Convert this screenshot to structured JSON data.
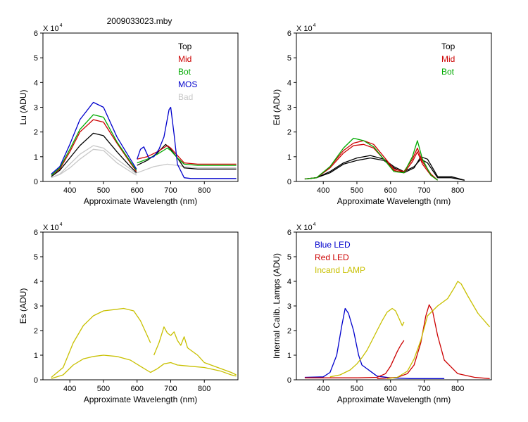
{
  "figure": {
    "title": "2009033023.mby"
  },
  "chart_data": [
    {
      "type": "line",
      "ylabel": "Lu (ADU)",
      "xlabel": "Approximate Wavelength (nm)",
      "exponent_label": "X 10",
      "exponent_power": "4",
      "xlim": [
        320,
        900
      ],
      "ylim": [
        0,
        6
      ],
      "xticks": [
        400,
        500,
        600,
        700,
        800
      ],
      "yticks": [
        0,
        1,
        2,
        3,
        4,
        5,
        6
      ],
      "legend": [
        {
          "label": "Top",
          "color": "#000000"
        },
        {
          "label": "Mid",
          "color": "#cc0000"
        },
        {
          "label": "Bot",
          "color": "#00aa00"
        },
        {
          "label": "MOS",
          "color": "#0000cc"
        },
        {
          "label": "Bad",
          "color": "#c8c8c8"
        }
      ],
      "series": [
        {
          "name": "Bad",
          "color": "#c8c8c8",
          "x": [
            345,
            370,
            400,
            430,
            470,
            500,
            540,
            580,
            598
          ],
          "y": [
            0.15,
            0.28,
            0.55,
            0.9,
            1.3,
            1.25,
            0.75,
            0.4,
            0.25
          ]
        },
        {
          "name": "Bad",
          "color": "#c8c8c8",
          "x": [
            345,
            370,
            400,
            430,
            470,
            500,
            540,
            580,
            598
          ],
          "y": [
            0.15,
            0.3,
            0.7,
            1.1,
            1.45,
            1.35,
            0.9,
            0.5,
            0.3
          ]
        },
        {
          "name": "Bad",
          "color": "#c8c8c8",
          "x": [
            600,
            620,
            650,
            690,
            700,
            720,
            740,
            780,
            840,
            895
          ],
          "y": [
            0.35,
            0.45,
            0.6,
            0.7,
            0.68,
            0.65,
            0.6,
            0.55,
            0.55,
            0.55
          ]
        },
        {
          "name": "Top",
          "color": "#000000",
          "x": [
            345,
            370,
            400,
            430,
            470,
            500,
            540,
            580,
            598
          ],
          "y": [
            0.2,
            0.45,
            0.95,
            1.45,
            1.95,
            1.85,
            1.2,
            0.6,
            0.35
          ]
        },
        {
          "name": "Top",
          "color": "#000000",
          "x": [
            600,
            630,
            660,
            685,
            700,
            720,
            740,
            780,
            840,
            895
          ],
          "y": [
            0.65,
            0.85,
            1.15,
            1.5,
            1.3,
            0.95,
            0.55,
            0.5,
            0.5,
            0.5
          ]
        },
        {
          "name": "Mid",
          "color": "#cc0000",
          "x": [
            345,
            370,
            400,
            430,
            470,
            500,
            540,
            580,
            598
          ],
          "y": [
            0.25,
            0.5,
            1.2,
            2.0,
            2.5,
            2.4,
            1.55,
            0.75,
            0.4
          ]
        },
        {
          "name": "Mid",
          "color": "#cc0000",
          "x": [
            600,
            630,
            660,
            690,
            700,
            720,
            740,
            780,
            840,
            895
          ],
          "y": [
            0.9,
            1.0,
            1.2,
            1.45,
            1.35,
            1.05,
            0.75,
            0.7,
            0.7,
            0.7
          ]
        },
        {
          "name": "Bot",
          "color": "#00aa00",
          "x": [
            345,
            370,
            400,
            430,
            470,
            500,
            540,
            580,
            598
          ],
          "y": [
            0.25,
            0.55,
            1.3,
            2.1,
            2.7,
            2.6,
            1.6,
            0.8,
            0.45
          ]
        },
        {
          "name": "Bot",
          "color": "#00aa00",
          "x": [
            600,
            630,
            660,
            690,
            700,
            720,
            740,
            780,
            840,
            895
          ],
          "y": [
            0.75,
            0.9,
            1.1,
            1.35,
            1.25,
            0.95,
            0.7,
            0.65,
            0.65,
            0.65
          ]
        },
        {
          "name": "MOS",
          "color": "#0000cc",
          "x": [
            345,
            370,
            400,
            430,
            470,
            500,
            540,
            580,
            598
          ],
          "y": [
            0.3,
            0.6,
            1.5,
            2.5,
            3.2,
            3.0,
            1.8,
            0.9,
            0.5
          ]
        },
        {
          "name": "MOS",
          "color": "#0000cc",
          "x": [
            600,
            610,
            620,
            635,
            650,
            665,
            680,
            695,
            700,
            710,
            720,
            740,
            760,
            800,
            895
          ],
          "y": [
            0.9,
            1.3,
            1.4,
            0.95,
            1.0,
            1.3,
            1.8,
            2.9,
            3.0,
            1.9,
            0.7,
            0.15,
            0.12,
            0.12,
            0.12
          ]
        }
      ]
    },
    {
      "type": "line",
      "ylabel": "Ed  (ADU)",
      "xlabel": "Approximate Wavelength (nm)",
      "exponent_label": "X 10",
      "exponent_power": "4",
      "xlim": [
        320,
        900
      ],
      "ylim": [
        0,
        6
      ],
      "xticks": [
        400,
        500,
        600,
        700,
        800
      ],
      "yticks": [
        0,
        1,
        2,
        3,
        4,
        5,
        6
      ],
      "legend": [
        {
          "label": "Top",
          "color": "#000000"
        },
        {
          "label": "Mid",
          "color": "#cc0000"
        },
        {
          "label": "Bot",
          "color": "#00aa00"
        }
      ],
      "series": [
        {
          "name": "Top",
          "color": "#000000",
          "x": [
            345,
            380,
            420,
            460,
            500,
            540,
            580,
            610,
            640,
            670,
            690,
            710,
            740,
            780,
            820
          ],
          "y": [
            0.1,
            0.15,
            0.4,
            0.75,
            0.95,
            1.05,
            0.9,
            0.6,
            0.4,
            0.6,
            0.9,
            0.75,
            0.15,
            0.15,
            0.05
          ]
        },
        {
          "name": "Top",
          "color": "#000000",
          "x": [
            345,
            380,
            420,
            460,
            500,
            540,
            580,
            610,
            640,
            670,
            690,
            710,
            740,
            780,
            820
          ],
          "y": [
            0.1,
            0.15,
            0.35,
            0.7,
            0.85,
            0.95,
            0.85,
            0.55,
            0.35,
            0.55,
            1.0,
            0.9,
            0.2,
            0.2,
            0.05
          ]
        },
        {
          "name": "Mid",
          "color": "#cc0000",
          "x": [
            345,
            380,
            420,
            460,
            490,
            520,
            550,
            580,
            610,
            640,
            665,
            680,
            695,
            720,
            740
          ],
          "y": [
            0.1,
            0.15,
            0.6,
            1.25,
            1.55,
            1.65,
            1.5,
            1.0,
            0.5,
            0.4,
            0.9,
            1.35,
            0.8,
            0.3,
            0.05
          ]
        },
        {
          "name": "Mid",
          "color": "#cc0000",
          "x": [
            345,
            380,
            420,
            460,
            490,
            520,
            550,
            580,
            610,
            640,
            665,
            680,
            695,
            720,
            740
          ],
          "y": [
            0.1,
            0.15,
            0.55,
            1.15,
            1.45,
            1.5,
            1.35,
            0.9,
            0.45,
            0.35,
            0.8,
            1.2,
            0.7,
            0.25,
            0.05
          ]
        },
        {
          "name": "Bot",
          "color": "#00aa00",
          "x": [
            345,
            380,
            420,
            460,
            490,
            520,
            550,
            580,
            610,
            640,
            665,
            680,
            695,
            720,
            740
          ],
          "y": [
            0.1,
            0.15,
            0.6,
            1.35,
            1.75,
            1.65,
            1.4,
            0.9,
            0.4,
            0.35,
            1.0,
            1.65,
            0.9,
            0.25,
            0.05
          ]
        }
      ]
    },
    {
      "type": "line",
      "ylabel": "Es  (ADU)",
      "xlabel": "Approximate Wavelength (nm)",
      "exponent_label": "X 10",
      "exponent_power": "4",
      "xlim": [
        320,
        900
      ],
      "ylim": [
        0,
        6
      ],
      "xticks": [
        400,
        500,
        600,
        700,
        800
      ],
      "yticks": [
        0,
        1,
        2,
        3,
        4,
        5,
        6
      ],
      "legend": [],
      "series": [
        {
          "name": "Es",
          "color": "#c8c000",
          "x": [
            345,
            380,
            410,
            440,
            470,
            500,
            530,
            560,
            590,
            610,
            630,
            640
          ],
          "y": [
            0.1,
            0.5,
            1.5,
            2.2,
            2.6,
            2.8,
            2.85,
            2.9,
            2.8,
            2.4,
            1.8,
            1.5
          ]
        },
        {
          "name": "Es",
          "color": "#c8c000",
          "x": [
            650,
            665,
            680,
            690,
            700,
            710,
            720,
            730,
            740,
            750,
            760,
            780,
            800,
            840,
            880,
            895
          ],
          "y": [
            1.0,
            1.5,
            2.15,
            1.9,
            1.8,
            1.95,
            1.6,
            1.4,
            1.75,
            1.3,
            1.2,
            1.0,
            0.7,
            0.5,
            0.3,
            0.2
          ]
        },
        {
          "name": "Es",
          "color": "#c8c000",
          "x": [
            345,
            380,
            410,
            440,
            470,
            500,
            540,
            580,
            610,
            640,
            660,
            680,
            700,
            720,
            760,
            800,
            850,
            880,
            895
          ],
          "y": [
            0.05,
            0.2,
            0.6,
            0.85,
            0.95,
            1.0,
            0.95,
            0.8,
            0.55,
            0.3,
            0.45,
            0.65,
            0.7,
            0.6,
            0.55,
            0.5,
            0.35,
            0.2,
            0.15
          ]
        }
      ]
    },
    {
      "type": "line",
      "ylabel": "Internal Calib. Lamps (ADU)",
      "xlabel": "Approximate Wavelength (nm)",
      "exponent_label": "X 10",
      "exponent_power": "4",
      "xlim": [
        320,
        900
      ],
      "ylim": [
        0,
        6
      ],
      "xticks": [
        400,
        500,
        600,
        700,
        800
      ],
      "yticks": [
        0,
        1,
        2,
        3,
        4,
        5,
        6
      ],
      "legend": [
        {
          "label": "Blue LED",
          "color": "#0000cc"
        },
        {
          "label": "Red LED",
          "color": "#cc0000"
        },
        {
          "label": "Incand LAMP",
          "color": "#c8c000"
        }
      ],
      "series": [
        {
          "name": "Blue LED",
          "color": "#0000cc",
          "x": [
            345,
            400,
            420,
            440,
            455,
            465,
            475,
            490,
            505,
            515,
            525,
            540,
            560,
            600,
            660,
            760
          ],
          "y": [
            0.1,
            0.12,
            0.3,
            1.0,
            2.2,
            2.9,
            2.7,
            2.0,
            1.0,
            0.6,
            0.5,
            0.35,
            0.15,
            0.08,
            0.05,
            0.05
          ]
        },
        {
          "name": "Red LED",
          "color": "#cc0000",
          "x": [
            345,
            500,
            560,
            585,
            600,
            610,
            620,
            630,
            640
          ],
          "y": [
            0.08,
            0.08,
            0.1,
            0.25,
            0.55,
            0.85,
            1.15,
            1.4,
            1.6
          ]
        },
        {
          "name": "Red LED",
          "color": "#cc0000",
          "x": [
            560,
            620,
            650,
            670,
            690,
            705,
            715,
            725,
            740,
            760,
            800,
            850,
            895
          ],
          "y": [
            0.05,
            0.1,
            0.25,
            0.6,
            1.5,
            2.6,
            3.05,
            2.8,
            1.8,
            0.8,
            0.25,
            0.1,
            0.05
          ]
        },
        {
          "name": "Incand LAMP",
          "color": "#c8c000",
          "x": [
            420,
            450,
            480,
            500,
            515,
            530,
            545,
            560,
            575,
            590,
            605,
            615,
            625,
            635,
            640
          ],
          "y": [
            0.12,
            0.2,
            0.4,
            0.65,
            0.9,
            1.2,
            1.6,
            2.0,
            2.4,
            2.75,
            2.9,
            2.8,
            2.5,
            2.2,
            2.35
          ]
        },
        {
          "name": "Incand LAMP",
          "color": "#c8c000",
          "x": [
            590,
            620,
            650,
            670,
            690,
            710,
            740,
            770,
            790,
            800,
            810,
            830,
            860,
            895
          ],
          "y": [
            0.05,
            0.1,
            0.35,
            0.85,
            1.6,
            2.6,
            3.0,
            3.3,
            3.75,
            4.0,
            3.9,
            3.4,
            2.7,
            2.15
          ]
        }
      ]
    }
  ]
}
